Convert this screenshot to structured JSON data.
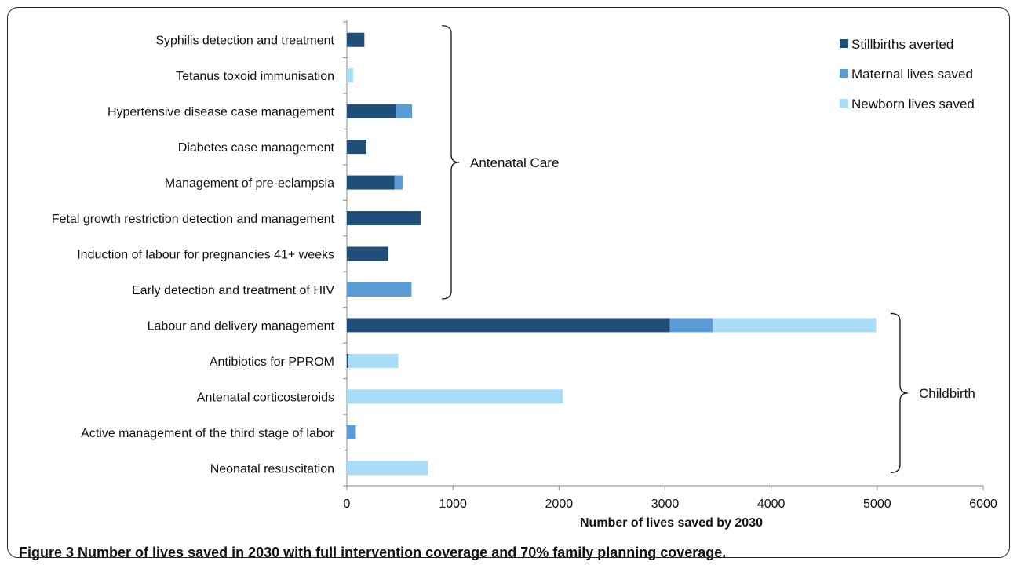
{
  "figure": {
    "label": "Figure 3",
    "caption": "Number of lives saved in 2030 with full intervention coverage and 70% family planning coverage."
  },
  "chart_data": {
    "type": "bar",
    "orientation": "horizontal",
    "stacked": true,
    "categories": [
      "Syphilis detection and treatment",
      "Tetanus toxoid immunisation",
      "Hypertensive disease case management",
      "Diabetes case management",
      "Management of pre-eclampsia",
      "Fetal growth restriction detection and management",
      "Induction of labour for pregnancies 41+ weeks",
      "Early detection and treatment of HIV",
      "Labour and delivery management",
      "Antibiotics for PPROM",
      "Antenatal corticosteroids",
      "Active management of the third stage of labor",
      "Neonatal resuscitation"
    ],
    "series": [
      {
        "name": "Stillbirths averted",
        "color": "#1f4e79",
        "values": [
          165,
          0,
          460,
          185,
          450,
          695,
          390,
          0,
          3045,
          15,
          0,
          0,
          0
        ]
      },
      {
        "name": "Maternal lives saved",
        "color": "#5b9bd5",
        "values": [
          0,
          0,
          155,
          0,
          75,
          0,
          0,
          610,
          405,
          0,
          0,
          85,
          0
        ]
      },
      {
        "name": "Newborn lives saved",
        "color": "#a9ddf7",
        "values": [
          0,
          60,
          0,
          0,
          0,
          0,
          0,
          0,
          1540,
          470,
          2035,
          0,
          765
        ]
      }
    ],
    "xlabel": "Number of lives saved by 2030",
    "ylabel": "",
    "xlim": [
      0,
      6000
    ],
    "xticks": [
      0,
      1000,
      2000,
      3000,
      4000,
      5000,
      6000
    ],
    "grid": false,
    "legend_position": "top-right",
    "groups": [
      {
        "label": "Antenatal Care",
        "from": 0,
        "to": 7
      },
      {
        "label": "Childbirth",
        "from": 8,
        "to": 12
      }
    ]
  }
}
